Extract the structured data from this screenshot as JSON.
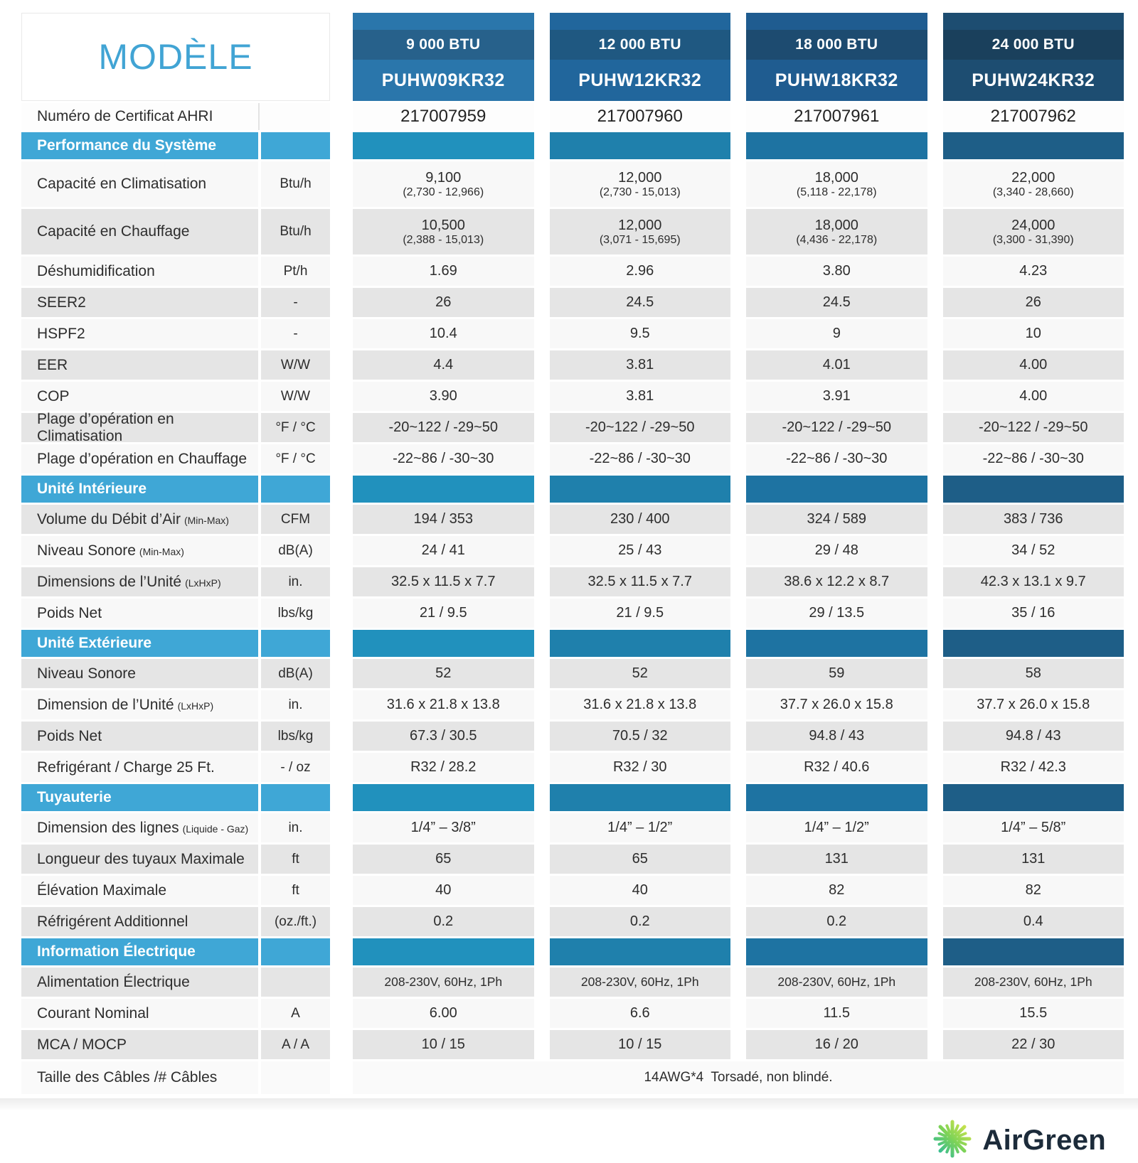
{
  "page": {
    "title": "MODÈLE"
  },
  "columns": [
    {
      "btu": "9 000 BTU",
      "model": "PUHW09KR32",
      "ahri": "217007959",
      "color_model": "#2a76ab",
      "color_btu": "#27618b",
      "color_section": "#2191bd"
    },
    {
      "btu": "12 000 BTU",
      "model": "PUHW12KR32",
      "ahri": "217007960",
      "color_model": "#21669c",
      "color_btu": "#1f5881",
      "color_section": "#1f80ac"
    },
    {
      "btu": "18 000 BTU",
      "model": "PUHW18KR32",
      "ahri": "217007961",
      "color_model": "#1f5c90",
      "color_btu": "#1d4b70",
      "color_section": "#1e73a2"
    },
    {
      "btu": "24 000 BTU",
      "model": "PUHW24KR32",
      "ahri": "217007962",
      "color_model": "#1d4d71",
      "color_btu": "#1a405c",
      "color_section": "#1e5e87"
    }
  ],
  "ahri_row": {
    "label": "Numéro de Certificat AHRI",
    "unit": ""
  },
  "sections": [
    {
      "title": "Performance du Système",
      "first_shade": "light",
      "rows": [
        {
          "label": "Capacité en Climatisation",
          "unit": "Btu/h",
          "values": [
            "9,100",
            "12,000",
            "18,000",
            "22,000"
          ],
          "subvalues": [
            "(2,730 - 12,966)",
            "(2,730 - 15,013)",
            "(5,118 - 22,178)",
            "(3,340 - 28,660)"
          ]
        },
        {
          "label": "Capacité en Chauffage",
          "unit": "Btu/h",
          "values": [
            "10,500",
            "12,000",
            "18,000",
            "24,000"
          ],
          "subvalues": [
            "(2,388 - 15,013)",
            "(3,071 - 15,695)",
            "(4,436 - 22,178)",
            "(3,300 - 31,390)"
          ]
        },
        {
          "label": "Déshumidification",
          "unit": "Pt/h",
          "values": [
            "1.69",
            "2.96",
            "3.80",
            "4.23"
          ]
        },
        {
          "label": "SEER2",
          "unit": "-",
          "values": [
            "26",
            "24.5",
            "24.5",
            "26"
          ]
        },
        {
          "label": "HSPF2",
          "unit": "-",
          "values": [
            "10.4",
            "9.5",
            "9",
            "10"
          ]
        },
        {
          "label": "EER",
          "unit": "W/W",
          "values": [
            "4.4",
            "3.81",
            "4.01",
            "4.00"
          ]
        },
        {
          "label": "COP",
          "unit": "W/W",
          "values": [
            "3.90",
            "3.81",
            "3.91",
            "4.00"
          ]
        },
        {
          "label": "Plage d’opération en Climatisation",
          "unit": "°F / °C",
          "values": [
            "-20~122 / -29~50",
            "-20~122 / -29~50",
            "-20~122 / -29~50",
            "-20~122 / -29~50"
          ]
        },
        {
          "label": "Plage d’opération en Chauffage",
          "unit": "°F / °C",
          "values": [
            "-22~86 / -30~30",
            "-22~86 / -30~30",
            "-22~86 / -30~30",
            "-22~86 / -30~30"
          ]
        }
      ]
    },
    {
      "title": "Unité Intérieure",
      "first_shade": "dark",
      "rows": [
        {
          "label": "Volume du Débit d’Air",
          "note": "(Min-Max)",
          "unit": "CFM",
          "values": [
            "194 / 353",
            "230 / 400",
            "324 / 589",
            "383 / 736"
          ]
        },
        {
          "label": "Niveau Sonore",
          "note": "(Min-Max)",
          "unit": "dB(A)",
          "values": [
            "24 / 41",
            "25 / 43",
            "29 / 48",
            "34 / 52"
          ]
        },
        {
          "label": "Dimensions de l’Unité",
          "note": "(LxHxP)",
          "unit": "in.",
          "values": [
            "32.5 x 11.5 x 7.7",
            "32.5 x 11.5 x 7.7",
            "38.6 x 12.2 x 8.7",
            "42.3 x 13.1 x 9.7"
          ]
        },
        {
          "label": "Poids Net",
          "unit": "lbs/kg",
          "values": [
            "21 / 9.5",
            "21 / 9.5",
            "29 / 13.5",
            "35 / 16"
          ]
        }
      ]
    },
    {
      "title": "Unité Extérieure",
      "first_shade": "dark",
      "rows": [
        {
          "label": "Niveau Sonore",
          "unit": "dB(A)",
          "values": [
            "52",
            "52",
            "59",
            "58"
          ]
        },
        {
          "label": "Dimension de l’Unité",
          "note": "(LxHxP)",
          "unit": "in.",
          "values": [
            "31.6 x 21.8 x 13.8",
            "31.6 x 21.8 x 13.8",
            "37.7 x 26.0 x 15.8",
            "37.7 x 26.0 x 15.8"
          ]
        },
        {
          "label": "Poids Net",
          "unit": "lbs/kg",
          "values": [
            "67.3 / 30.5",
            "70.5 / 32",
            "94.8 / 43",
            "94.8 / 43"
          ]
        },
        {
          "label": "Refrigérant / Charge 25 Ft.",
          "unit": "- / oz",
          "values": [
            "R32 / 28.2",
            "R32 / 30",
            "R32 / 40.6",
            "R32 / 42.3"
          ]
        }
      ]
    },
    {
      "title": "Tuyauterie",
      "first_shade": "light",
      "rows": [
        {
          "label": "Dimension des lignes",
          "note": "(Liquide - Gaz)",
          "unit": "in.",
          "values": [
            "1/4” –  3/8”",
            "1/4” –  1/2”",
            "1/4” –  1/2”",
            "1/4” –  5/8”"
          ]
        },
        {
          "label": "Longueur des tuyaux Maximale",
          "unit": "ft",
          "values": [
            "65",
            "65",
            "131",
            "131"
          ]
        },
        {
          "label": "Élévation Maximale",
          "unit": "ft",
          "values": [
            "40",
            "40",
            "82",
            "82"
          ]
        },
        {
          "label": "Réfrigérent Additionnel",
          "unit": "(oz./ft.)",
          "values": [
            "0.2",
            "0.2",
            "0.2",
            "0.4"
          ]
        }
      ]
    },
    {
      "title": "Information Électrique",
      "first_shade": "dark",
      "rows": [
        {
          "label": "Alimentation Électrique",
          "unit": "",
          "small": true,
          "values": [
            "208-230V, 60Hz, 1Ph",
            "208-230V, 60Hz, 1Ph",
            "208-230V, 60Hz, 1Ph",
            "208-230V, 60Hz, 1Ph"
          ]
        },
        {
          "label": "Courant Nominal",
          "unit": "A",
          "values": [
            "6.00",
            "6.6",
            "11.5",
            "15.5"
          ]
        },
        {
          "label": "MCA / MOCP",
          "unit": "A / A",
          "values": [
            "10 / 15",
            "10 / 15",
            "16 / 20",
            "22 / 30"
          ]
        }
      ]
    }
  ],
  "footer_row": {
    "label": "Taille des Câbles /# Câbles",
    "value": "14AWG*4  Torsadé, non blindé."
  },
  "logo": {
    "name": "AirGreen",
    "icon": "snowflake-icon",
    "text_color": "#1c2b3a",
    "icon_colors": [
      "#1fb5a6",
      "#7ed357",
      "#e3e84a"
    ]
  }
}
